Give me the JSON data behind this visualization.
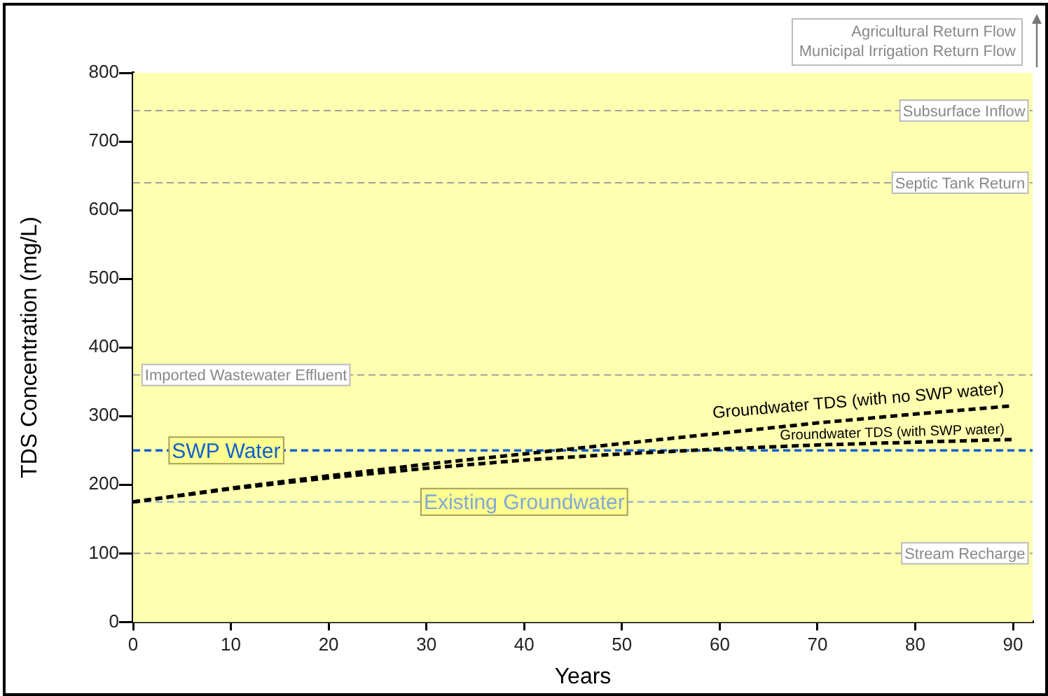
{
  "chart_data": {
    "type": "line",
    "xlabel": "Years",
    "ylabel": "TDS Concentration (mg/L)",
    "x": [
      0,
      10,
      20,
      30,
      40,
      50,
      60,
      70,
      80,
      90
    ],
    "series": [
      {
        "name": "Groundwater TDS (with no SWP water)",
        "color": "#000000",
        "line_style": "dashed",
        "values": [
          175,
          195,
          213,
          230,
          245,
          260,
          275,
          290,
          303,
          315
        ]
      },
      {
        "name": "Groundwater TDS (with SWP water)",
        "color": "#000000",
        "line_style": "dashed",
        "values": [
          175,
          194,
          210,
          224,
          236,
          245,
          252,
          258,
          262,
          266
        ]
      }
    ],
    "xlim": [
      0,
      92
    ],
    "xticks": [
      0,
      10,
      20,
      30,
      40,
      50,
      60,
      70,
      80,
      90
    ],
    "ylim": [
      0,
      800
    ],
    "yticks": [
      0,
      100,
      200,
      300,
      400,
      500,
      600,
      700,
      800
    ],
    "ref_lines": [
      {
        "axis": "y",
        "value": 745,
        "label": "Subsurface Inflow",
        "color": "#a0a0a0",
        "line_style": "dashed"
      },
      {
        "axis": "y",
        "value": 640,
        "label": "Septic Tank Return",
        "color": "#a0a0a0",
        "line_style": "dashed"
      },
      {
        "axis": "y",
        "value": 360,
        "label": "Imported Wastewater Effluent",
        "color": "#a0a0a0",
        "line_style": "dashed"
      },
      {
        "axis": "y",
        "value": 250,
        "label": "SWP Water",
        "color": "#1060d0",
        "line_style": "dashed"
      },
      {
        "axis": "y",
        "value": 175,
        "label": "Existing Groundwater",
        "color": "#80a8d8",
        "line_style": "dashed"
      },
      {
        "axis": "y",
        "value": 100,
        "label": "Stream Recharge",
        "color": "#a0a0a0",
        "line_style": "dashed"
      }
    ],
    "annotations": [
      "Agricultural Return Flow",
      "Municipal Irrigation Return Flow"
    ],
    "grid": false,
    "legend": false,
    "marker": "none"
  }
}
